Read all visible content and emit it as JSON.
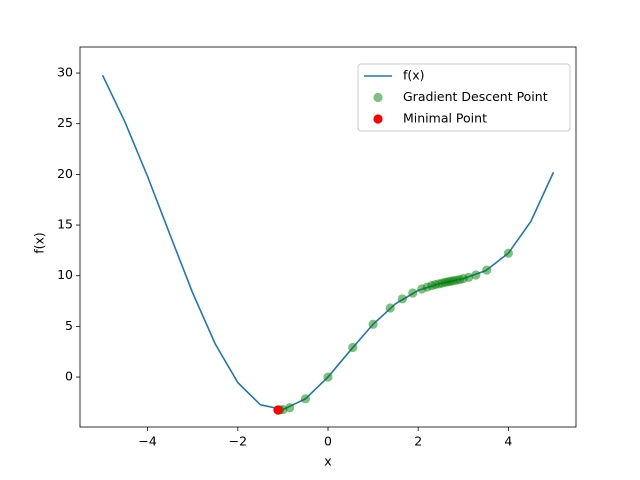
{
  "chart_data": {
    "type": "line-scatter",
    "xlabel": "x",
    "ylabel": "f(x)",
    "xlim": [
      -5.5,
      5.5
    ],
    "ylim": [
      -4.93,
      32.57
    ],
    "xticks": [
      {
        "value": -4,
        "label": "−4"
      },
      {
        "value": -2,
        "label": "−2"
      },
      0,
      2,
      4
    ],
    "yticks": [
      0,
      5,
      10,
      15,
      20,
      25,
      30
    ],
    "legend": "upper right",
    "series": [
      {
        "name": "f(x)",
        "kind": "line",
        "color": "#1f77b4",
        "x": [
          -5,
          -4.5,
          -4,
          -3.5,
          -3,
          -2.5,
          -2,
          -1.5,
          -1,
          -0.5,
          0,
          0.5,
          1,
          1.5,
          2,
          2.5,
          3,
          3.5,
          4,
          4.5,
          5
        ],
        "values": [
          29.79,
          25.14,
          19.78,
          14.0,
          8.29,
          3.26,
          -0.55,
          -2.74,
          -3.21,
          -2.15,
          0,
          2.65,
          5.21,
          7.24,
          8.55,
          9.24,
          9.71,
          10.5,
          12.22,
          15.36,
          20.21
        ]
      },
      {
        "name": "Gradient Descent Point",
        "kind": "scatter",
        "color": "#008000",
        "x": [
          4.0,
          3.52,
          3.28,
          3.12,
          3.0,
          2.92,
          2.85,
          2.78,
          2.72,
          2.66,
          2.6,
          2.53,
          2.46,
          2.38,
          2.3,
          2.2,
          2.08,
          1.88,
          1.65,
          1.38,
          1.0,
          0.55,
          0,
          -0.5,
          -0.85,
          -1.0,
          -1.07,
          -1.1
        ],
        "values": [
          12.22,
          10.55,
          10.07,
          9.84,
          9.71,
          9.62,
          9.56,
          9.5,
          9.45,
          9.4,
          9.34,
          9.27,
          9.2,
          9.12,
          9.02,
          8.88,
          8.69,
          8.29,
          7.71,
          6.81,
          5.21,
          2.92,
          0,
          -2.15,
          -3.03,
          -3.21,
          -3.24,
          -3.25
        ]
      },
      {
        "name": "Minimal Point",
        "kind": "scatter",
        "color": "#ff0000",
        "x": [
          -1.11
        ],
        "values": [
          -3.25
        ]
      }
    ]
  }
}
